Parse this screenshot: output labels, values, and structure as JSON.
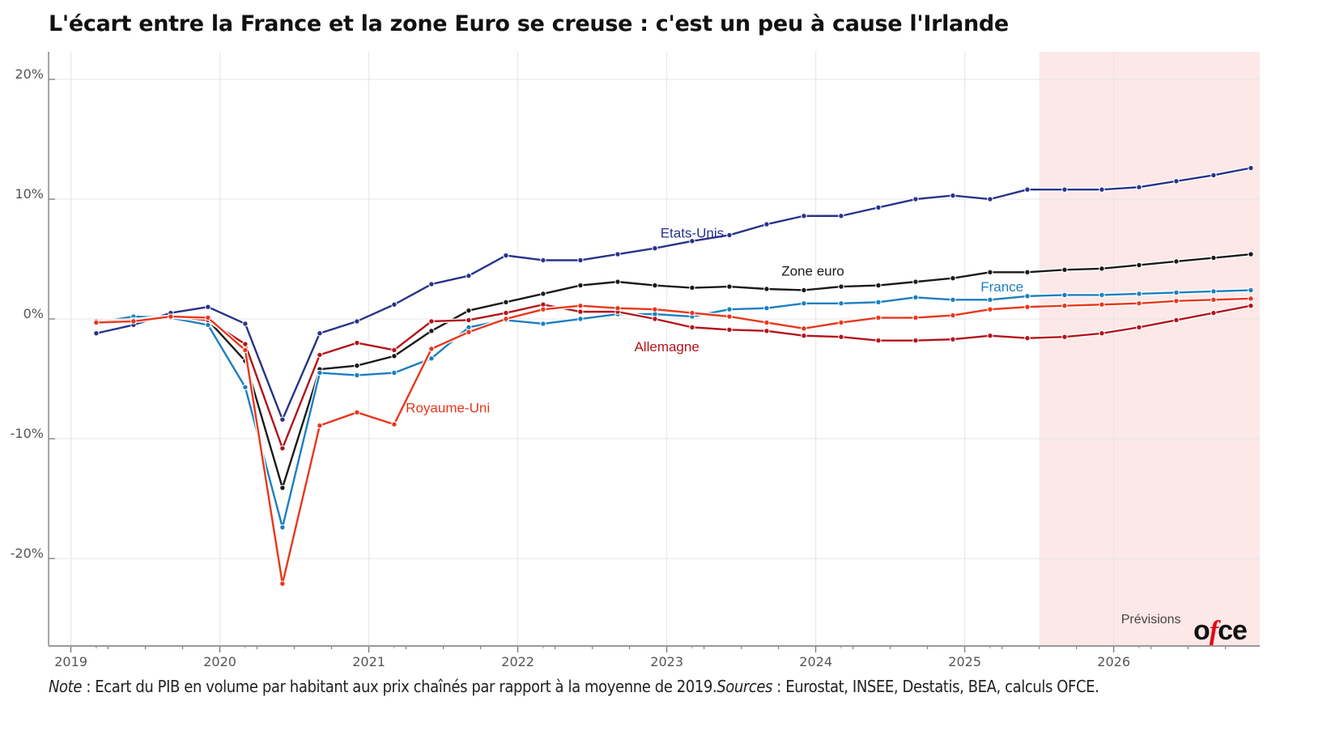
{
  "title": "L'écart entre la France et la zone Euro se creuse : c'est un peu à cause l'Irlande",
  "note": {
    "note_label": "Note",
    "note_text": " : Ecart du PIB en volume par habitant aux prix chaînés par rapport à la moyenne de 2019.",
    "sources_label": "Sources",
    "sources_text": " : Eurostat, INSEE, Destatis, BEA, calculs OFCE."
  },
  "logo": {
    "pre": "o",
    "f": "f",
    "post": "ce"
  },
  "chart_data": {
    "type": "line",
    "title": "L'écart entre la France et la zone Euro se creuse : c'est un peu à cause l'Irlande",
    "xlabel": "",
    "ylabel": "",
    "x_start": "2019Q1",
    "frequency": "quarterly",
    "x": [
      2019.17,
      2019.42,
      2019.67,
      2019.92,
      2020.17,
      2020.42,
      2020.67,
      2020.92,
      2021.17,
      2021.42,
      2021.67,
      2021.92,
      2022.17,
      2022.42,
      2022.67,
      2022.92,
      2023.17,
      2023.42,
      2023.67,
      2023.92,
      2024.17,
      2024.42,
      2024.67,
      2024.92,
      2025.17,
      2025.42,
      2025.67,
      2025.92,
      2026.17,
      2026.42,
      2026.67,
      2026.92
    ],
    "xlim": [
      2018.85,
      2026.98
    ],
    "ylim": [
      -27.3,
      22.3
    ],
    "x_ticks": [
      "2019",
      "2020",
      "2021",
      "2022",
      "2023",
      "2024",
      "2025",
      "2026"
    ],
    "x_tick_values": [
      2019,
      2020,
      2021,
      2022,
      2023,
      2024,
      2025,
      2026
    ],
    "y_ticks": [
      "20%",
      "10%",
      "0%",
      "-10%",
      "-20%"
    ],
    "y_tick_values": [
      20,
      10,
      0,
      -10,
      -20
    ],
    "grid": true,
    "forecast_region": {
      "label": "Prévisions",
      "from": 2025.5,
      "to": 2026.98,
      "color": "#fde8e8"
    },
    "series": [
      {
        "name": "Etats-Unis",
        "color": "#28338a",
        "label_at": [
          2023.17,
          6.8
        ],
        "values": [
          -1.2,
          -0.5,
          0.5,
          1.0,
          -0.4,
          -8.4,
          -1.2,
          -0.2,
          1.2,
          2.9,
          3.6,
          5.3,
          4.9,
          4.9,
          5.4,
          5.9,
          6.5,
          7.0,
          7.9,
          8.6,
          8.6,
          9.3,
          10.0,
          10.3,
          10.0,
          10.8,
          10.8,
          10.8,
          11.0,
          11.5,
          12.0,
          12.6
        ]
      },
      {
        "name": "Zone euro",
        "color": "#1a1a1a",
        "label_at": [
          2023.98,
          3.6
        ],
        "values": [
          -0.3,
          -0.1,
          0.1,
          -0.1,
          -3.5,
          -14.1,
          -4.2,
          -3.9,
          -3.1,
          -1.0,
          0.7,
          1.4,
          2.1,
          2.8,
          3.1,
          2.8,
          2.6,
          2.7,
          2.5,
          2.4,
          2.7,
          2.8,
          3.1,
          3.4,
          3.9,
          3.9,
          4.1,
          4.2,
          4.5,
          4.8,
          5.1,
          5.4
        ]
      },
      {
        "name": "France",
        "color": "#1b7fc0",
        "label_at": [
          2025.25,
          2.3
        ],
        "values": [
          -0.3,
          0.2,
          0.1,
          -0.5,
          -5.7,
          -17.4,
          -4.5,
          -4.7,
          -4.5,
          -3.3,
          -0.7,
          -0.1,
          -0.4,
          0.0,
          0.4,
          0.4,
          0.2,
          0.8,
          0.9,
          1.3,
          1.3,
          1.4,
          1.8,
          1.6,
          1.6,
          1.9,
          2.0,
          2.0,
          2.1,
          2.2,
          2.3,
          2.4
        ]
      },
      {
        "name": "Allemagne",
        "color": "#b3141c",
        "label_at": [
          2023.0,
          -2.7
        ],
        "values": [
          -0.2,
          -0.1,
          0.2,
          -0.1,
          -2.1,
          -10.8,
          -3.0,
          -2.0,
          -2.6,
          -0.2,
          -0.1,
          0.5,
          1.2,
          0.6,
          0.6,
          0.0,
          -0.7,
          -0.9,
          -1.0,
          -1.4,
          -1.5,
          -1.8,
          -1.8,
          -1.7,
          -1.4,
          -1.6,
          -1.5,
          -1.2,
          -0.7,
          -0.1,
          0.5,
          1.1
        ]
      },
      {
        "name": "Royaume-Uni",
        "color": "#e8371c",
        "label_at": [
          2021.53,
          -7.8
        ],
        "values": [
          -0.3,
          -0.2,
          0.2,
          0.1,
          -2.6,
          -22.1,
          -8.9,
          -7.8,
          -8.8,
          -2.5,
          -1.1,
          0.0,
          0.8,
          1.1,
          0.9,
          0.8,
          0.5,
          0.2,
          -0.3,
          -0.8,
          -0.3,
          0.1,
          0.1,
          0.3,
          0.8,
          1.0,
          1.1,
          1.2,
          1.3,
          1.5,
          1.6,
          1.7
        ]
      }
    ]
  }
}
